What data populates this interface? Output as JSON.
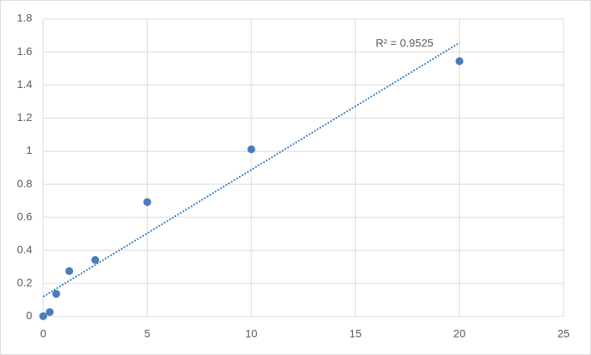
{
  "chart_data": {
    "type": "scatter",
    "x": [
      0,
      0.3125,
      0.625,
      1.25,
      2.5,
      5,
      10,
      20
    ],
    "y": [
      0.002,
      0.027,
      0.137,
      0.275,
      0.342,
      0.692,
      1.011,
      1.544
    ],
    "color": "#4a7ebb",
    "trendline": {
      "x": [
        0,
        20
      ],
      "y": [
        0.12,
        1.655
      ],
      "color": "#2e75b6"
    },
    "annotation": "R² = 0.9525",
    "xlim": [
      0,
      25
    ],
    "xticks": [
      0,
      5,
      10,
      15,
      20,
      25
    ],
    "ylim": [
      0,
      1.8
    ],
    "yticks": [
      0,
      0.2,
      0.4,
      0.6,
      0.8,
      1,
      1.2,
      1.4,
      1.6,
      1.8
    ],
    "grid": true
  }
}
